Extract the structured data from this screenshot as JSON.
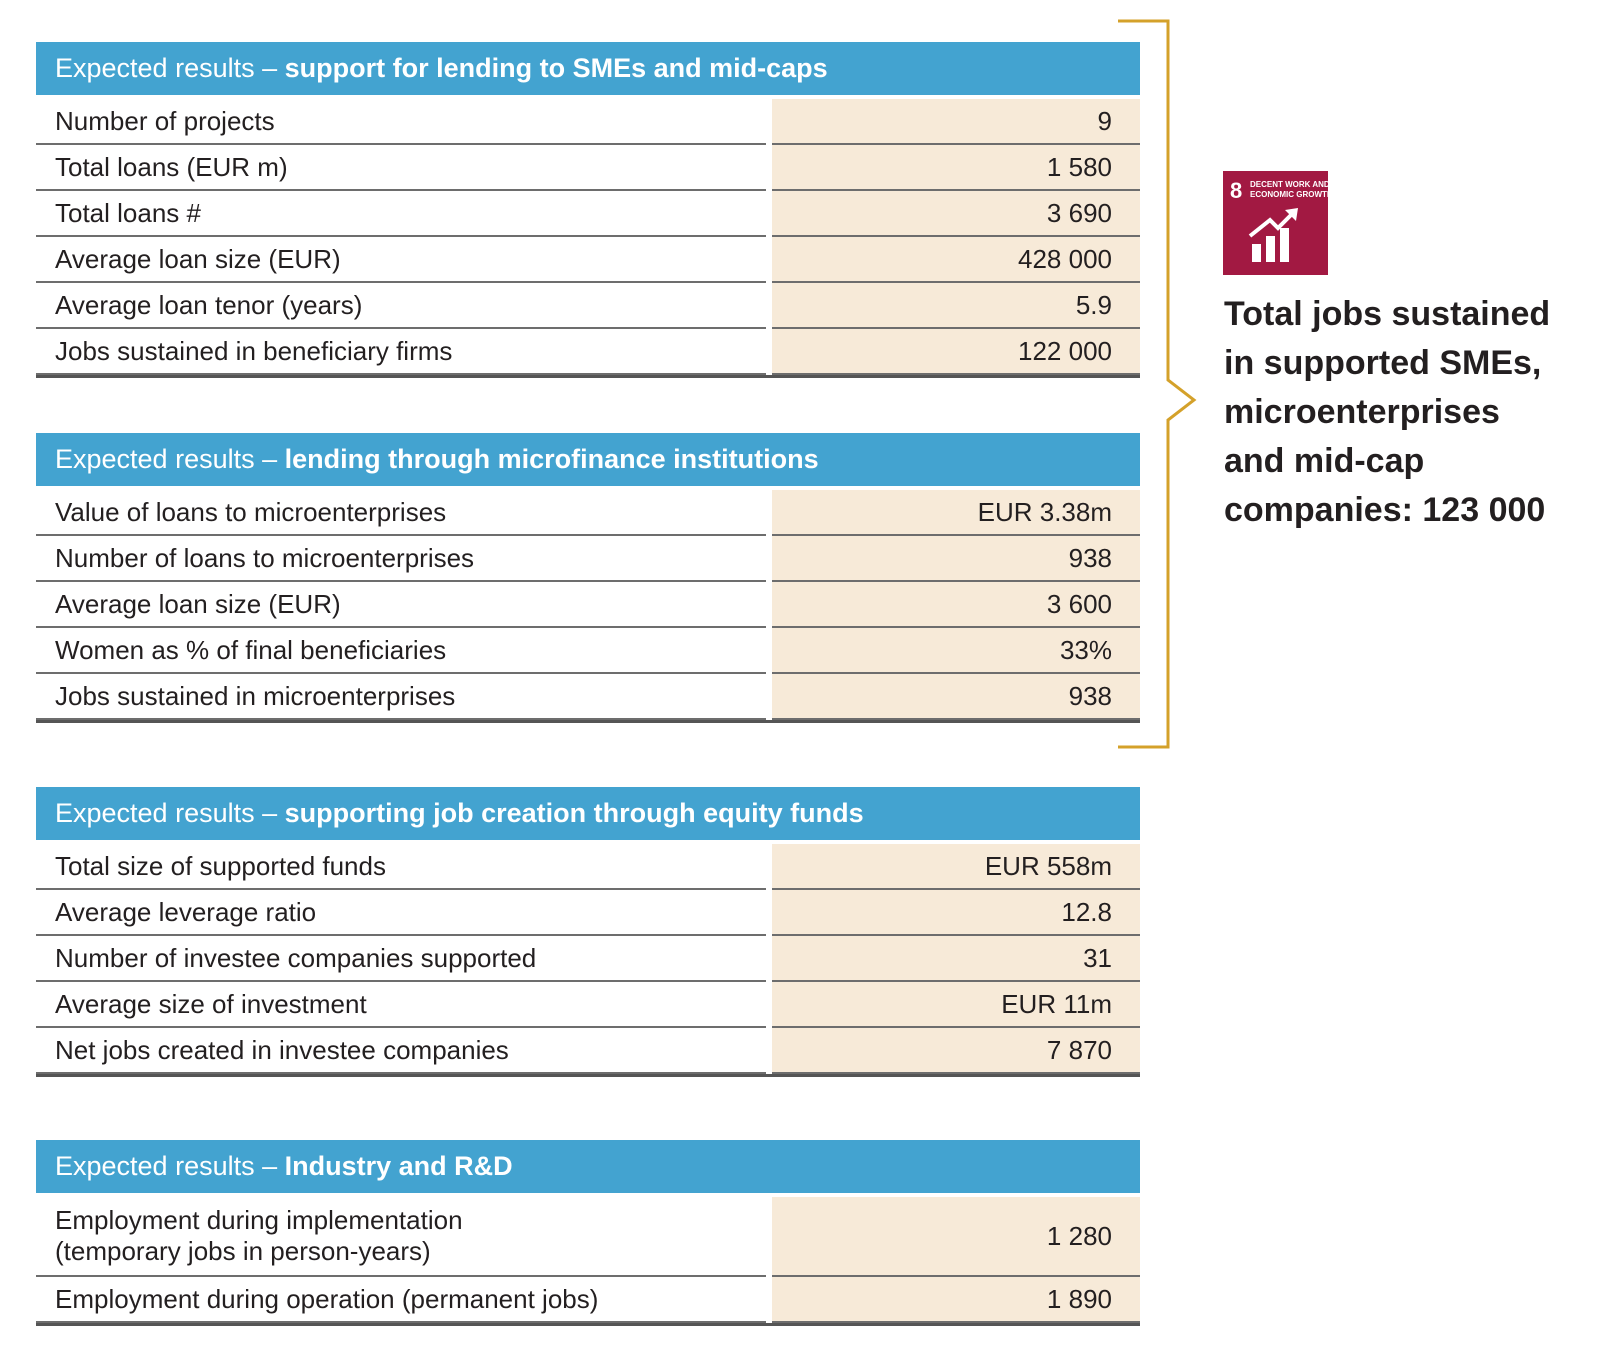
{
  "tables": [
    {
      "header": {
        "prefix": "Expected results  –  ",
        "title": "support for lending to SMEs and mid-caps"
      },
      "rows": [
        {
          "label": [
            "Number of projects"
          ],
          "value": "9"
        },
        {
          "label": [
            "Total loans (EUR m)"
          ],
          "value": "1 580"
        },
        {
          "label": [
            "Total loans #"
          ],
          "value": "3 690"
        },
        {
          "label": [
            "Average loan size (EUR)"
          ],
          "value": "428 000"
        },
        {
          "label": [
            "Average loan tenor (years)"
          ],
          "value": "5.9"
        },
        {
          "label": [
            "Jobs sustained in beneficiary firms"
          ],
          "value": "122 000"
        }
      ]
    },
    {
      "header": {
        "prefix": "Expected results – ",
        "title": "lending through microfinance institutions"
      },
      "rows": [
        {
          "label": [
            "Value of loans to microenterprises"
          ],
          "value": "EUR 3.38m"
        },
        {
          "label": [
            "Number of loans to microenterprises"
          ],
          "value": "938"
        },
        {
          "label": [
            "Average loan size (EUR)"
          ],
          "value": "3 600"
        },
        {
          "label": [
            "Women as % of final beneficiaries"
          ],
          "value": "33%"
        },
        {
          "label": [
            "Jobs sustained in microenterprises"
          ],
          "value": "938"
        }
      ]
    },
    {
      "header": {
        "prefix": "Expected results – ",
        "title": "supporting job creation through equity funds"
      },
      "rows": [
        {
          "label": [
            "Total size of supported funds"
          ],
          "value": "EUR 558m"
        },
        {
          "label": [
            "Average leverage ratio"
          ],
          "value": "12.8"
        },
        {
          "label": [
            "Number of investee companies supported"
          ],
          "value": "31"
        },
        {
          "label": [
            "Average size of investment"
          ],
          "value": "EUR 11m"
        },
        {
          "label": [
            "Net jobs created in investee companies"
          ],
          "value": "7 870"
        }
      ]
    },
    {
      "header": {
        "prefix": "Expected results – ",
        "title": "Industry and R&D"
      },
      "rows": [
        {
          "label": [
            "Employment during implementation",
            "(temporary jobs in person-years)"
          ],
          "value": "1 280"
        },
        {
          "label": [
            "Employment during operation (permanent jobs)"
          ],
          "value": "1 890"
        }
      ]
    }
  ],
  "sdg": {
    "number": "8",
    "lines": [
      "DECENT WORK AND",
      "ECONOMIC GROWTH"
    ]
  },
  "summary": {
    "lines": [
      "Total jobs sustained",
      "in supported SMEs,",
      "microenterprises",
      "and mid-cap",
      "companies: 123 000"
    ]
  }
}
